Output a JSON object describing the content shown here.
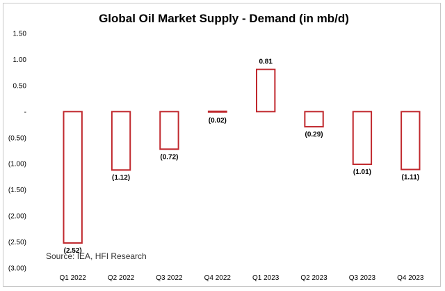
{
  "chart_data": {
    "type": "bar",
    "title": "Global Oil Market Supply - Demand (in mb/d)",
    "categories": [
      "Q1 2022",
      "Q2 2022",
      "Q3 2022",
      "Q4 2022",
      "Q1 2023",
      "Q2 2023",
      "Q3 2023",
      "Q4 2023"
    ],
    "values": [
      -2.52,
      -1.12,
      -0.72,
      -0.02,
      0.81,
      -0.29,
      -1.01,
      -1.11
    ],
    "data_labels": [
      "(2.52)",
      "(1.12)",
      "(0.72)",
      "(0.02)",
      "0.81",
      "(0.29)",
      "(1.01)",
      "(1.11)"
    ],
    "ylim": [
      -3.0,
      1.5
    ],
    "yticks": [
      1.5,
      1.0,
      0.5,
      0,
      -0.5,
      -1.0,
      -1.5,
      -2.0,
      -2.5,
      -3.0
    ],
    "ytick_labels": [
      "1.50",
      "1.00",
      "0.50",
      "-",
      "(0.50)",
      "(1.00)",
      "(1.50)",
      "(2.00)",
      "(2.50)",
      "(3.00)"
    ],
    "grid": false,
    "legend": "none",
    "bar_style": "hollow",
    "bar_color": "#c0282d",
    "annotation": "Source: IEA, HFI Research"
  }
}
